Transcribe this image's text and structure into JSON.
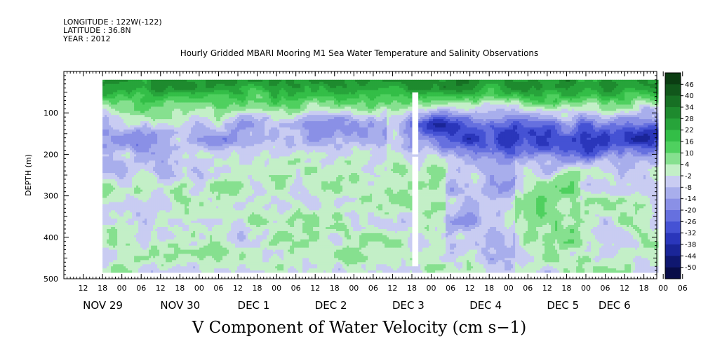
{
  "header": {
    "longitude": "LONGITUDE : 122W(-122)",
    "latitude": "LATITUDE : 36.8N",
    "year": "YEAR : 2012"
  },
  "chart_data": {
    "type": "heatmap",
    "title": "Hourly Gridded MBARI Mooring M1 Sea Water Temperature and Salinity Observations",
    "bottom_title": "V Component of Water Velocity (cm s−1)",
    "ylabel": "DEPTH (m)",
    "ylim": [
      500,
      0
    ],
    "y_ticks": [
      100,
      200,
      300,
      400,
      500
    ],
    "x_range_hours": [
      0,
      184
    ],
    "x_hour_ticks": [
      "12",
      "18",
      "00",
      "06",
      "12",
      "18",
      "00",
      "06",
      "12",
      "18",
      "00",
      "06",
      "12",
      "18",
      "00",
      "06",
      "12",
      "18",
      "00",
      "06",
      "12",
      "18",
      "00",
      "06",
      "12",
      "18",
      "00",
      "06",
      "12",
      "18",
      "00",
      "06"
    ],
    "x_date_labels": [
      "NOV 29",
      "NOV 30",
      "DEC 1",
      "DEC 2",
      "DEC 3",
      "DEC 4",
      "DEC 5",
      "DEC 6"
    ],
    "colorbar": {
      "levels": [
        "46",
        "40",
        "34",
        "28",
        "22",
        "16",
        "10",
        "4",
        "-2",
        "-8",
        "-14",
        "-20",
        "-26",
        "-32",
        "-38",
        "-44",
        "-50"
      ],
      "colors_high_to_low": [
        "#0b3d12",
        "#11571b",
        "#177024",
        "#1e8a2e",
        "#27a43a",
        "#33be47",
        "#4fd05f",
        "#86e08f",
        "#c3efc7",
        "#c9ccf2",
        "#a8aeec",
        "#8a90e6",
        "#6670df",
        "#4552d4",
        "#2a36bb",
        "#1a2598",
        "#0f1770",
        "#080c48"
      ]
    },
    "grid": false,
    "legend_position": "right"
  }
}
